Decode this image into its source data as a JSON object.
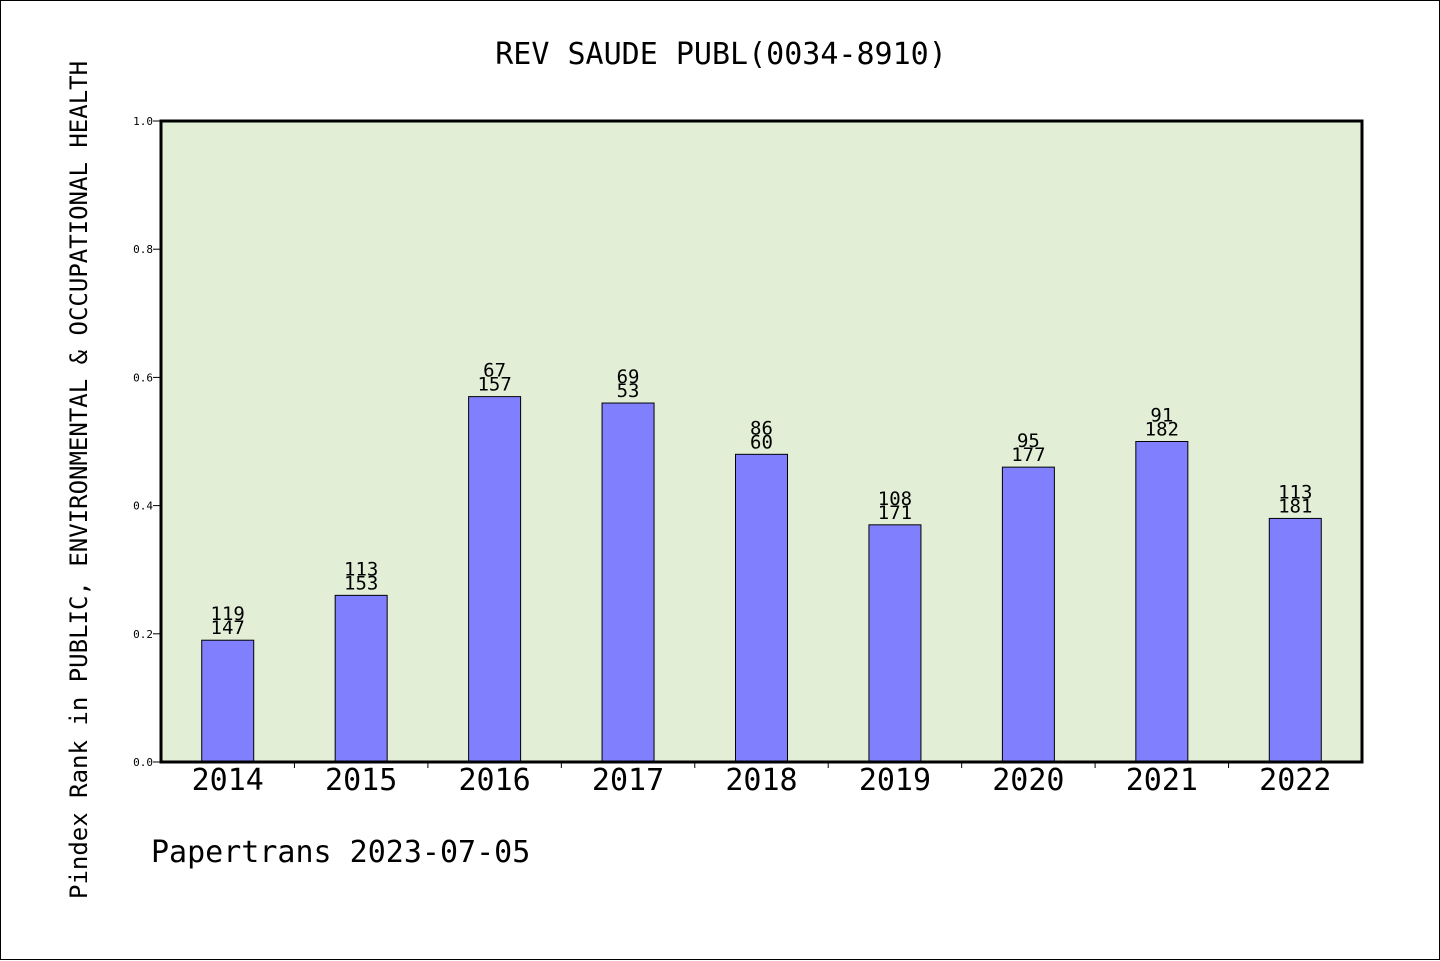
{
  "chart_data": {
    "type": "bar",
    "title": "REV SAUDE PUBL(0034-8910)",
    "ylabel": "Pindex Rank in PUBLIC, ENVIRONMENTAL & OCCUPATIONAL HEALTH",
    "xlabel": "",
    "categories": [
      "2014",
      "2015",
      "2016",
      "2017",
      "2018",
      "2019",
      "2020",
      "2021",
      "2022"
    ],
    "values": [
      0.19,
      0.26,
      0.57,
      0.56,
      0.48,
      0.37,
      0.46,
      0.5,
      0.38
    ],
    "bar_labels_top": [
      "119",
      "113",
      "67",
      "69",
      "86",
      "108",
      "95",
      "91",
      "113"
    ],
    "bar_labels_bottom": [
      "147",
      "153",
      "157",
      "53",
      "60",
      "171",
      "177",
      "182",
      "181"
    ],
    "ylim": [
      0.0,
      1.0
    ],
    "yticks": [
      "0.0",
      "0.2",
      "0.4",
      "0.6",
      "0.8",
      "1.0"
    ],
    "grid": false,
    "legend": "none",
    "colors": {
      "bar": "#8080ff",
      "plot_background": "#e2efd6",
      "axis": "#000000"
    }
  },
  "footer": {
    "credit": "Papertrans 2023-07-05"
  }
}
